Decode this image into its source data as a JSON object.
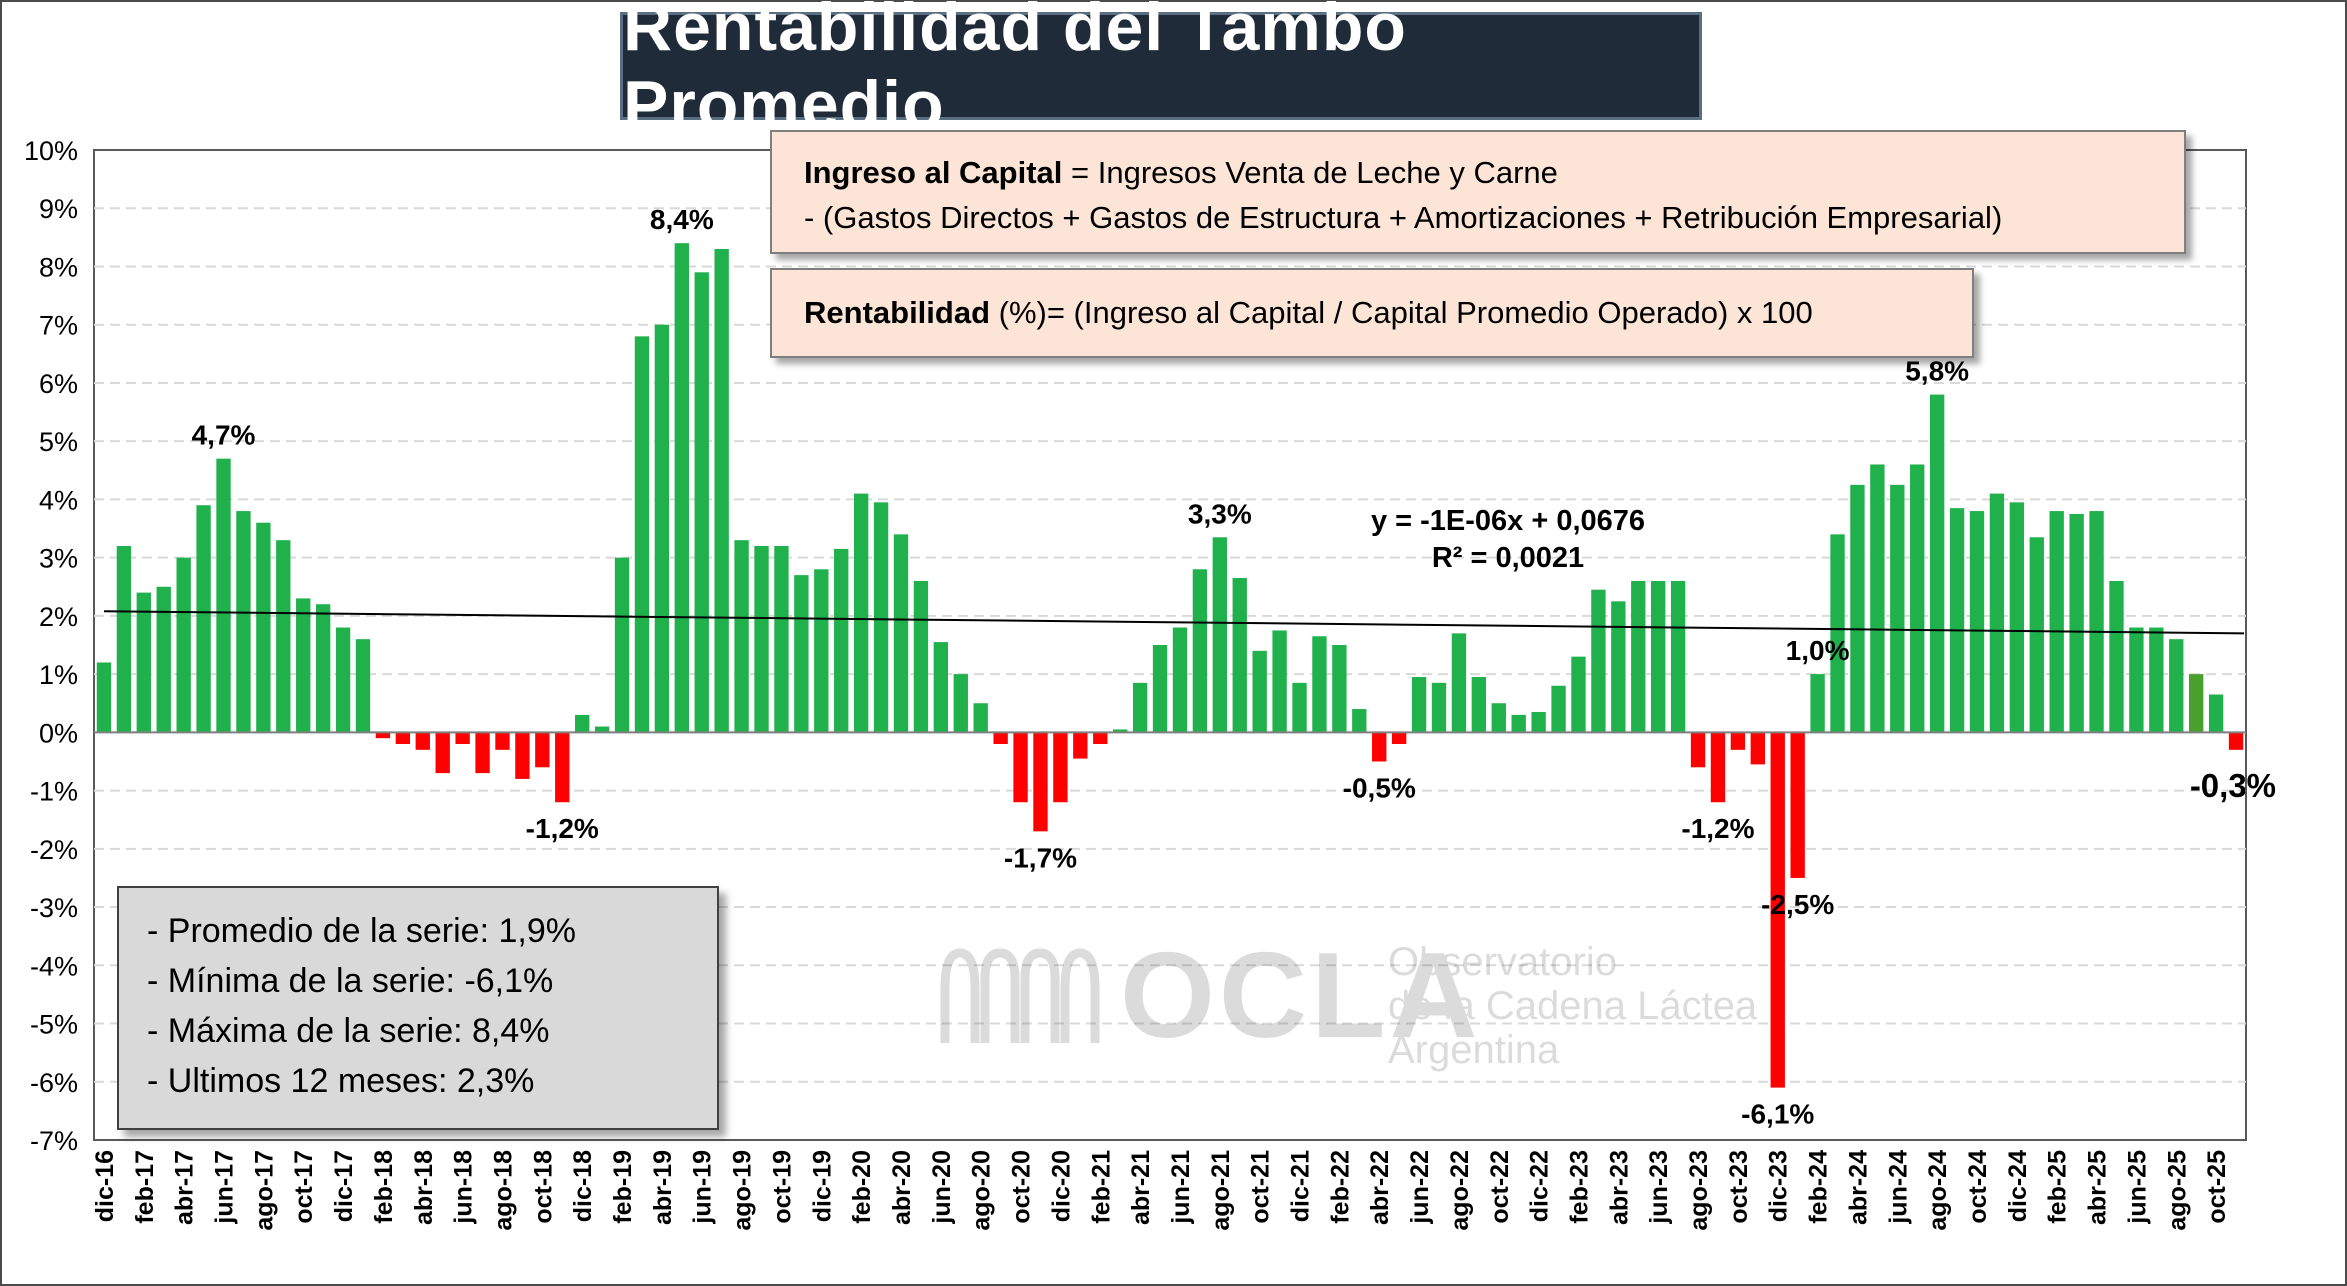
{
  "title": "Rentabilidad del Tambo Promedio",
  "formula": {
    "line1_label": "Ingreso al Capital",
    "line1_text": " = Ingresos Venta de Leche y Carne",
    "line2_text": "-  (Gastos Directos + Gastos de Estructura  + Amortizaciones +  Retribución Empresarial)",
    "line3_label": "Rentabilidad",
    "line3_text": " (%)= (Ingreso al Capital / Capital Promedio Operado) x 100"
  },
  "stats": {
    "promedio": "- Promedio de la serie: 1,9%",
    "minima": "- Mínima de la serie: -6,1%",
    "maxima": "- Máxima de la serie: 8,4%",
    "ultimos": "- Ultimos 12 meses: 2,3%"
  },
  "logo": {
    "word": "OCLA",
    "line1": "Observatorio",
    "line2": "de la Cadena Láctea",
    "line3": "Argentina"
  },
  "colors": {
    "positive": "#21b14c",
    "negative": "#ff0000",
    "highlight": "#4aa02c",
    "grid": "#d9d9d9",
    "trend": "#000000"
  },
  "chart_data": {
    "type": "bar",
    "title": "Rentabilidad del Tambo Promedio",
    "ylim": [
      -7,
      10
    ],
    "ytick_step": 1,
    "ytick_labels": [
      "10%",
      "9%",
      "8%",
      "7%",
      "6%",
      "5%",
      "4%",
      "3%",
      "2%",
      "1%",
      "0%",
      "-1%",
      "-2%",
      "-3%",
      "-4%",
      "-5%",
      "-6%",
      "-7%"
    ],
    "grid": true,
    "categories": [
      "dic-16",
      "ene-17",
      "feb-17",
      "mar-17",
      "abr-17",
      "may-17",
      "jun-17",
      "jul-17",
      "ago-17",
      "sep-17",
      "oct-17",
      "nov-17",
      "dic-17",
      "ene-18",
      "feb-18",
      "mar-18",
      "abr-18",
      "may-18",
      "jun-18",
      "jul-18",
      "ago-18",
      "sep-18",
      "oct-18",
      "nov-18",
      "dic-18",
      "ene-19",
      "feb-19",
      "mar-19",
      "abr-19",
      "may-19",
      "jun-19",
      "jul-19",
      "ago-19",
      "sep-19",
      "oct-19",
      "nov-19",
      "dic-19",
      "ene-20",
      "feb-20",
      "mar-20",
      "abr-20",
      "may-20",
      "jun-20",
      "jul-20",
      "ago-20",
      "sep-20",
      "oct-20",
      "nov-20",
      "dic-20",
      "ene-21",
      "feb-21",
      "mar-21",
      "abr-21",
      "may-21",
      "jun-21",
      "jul-21",
      "ago-21",
      "sep-21",
      "oct-21",
      "nov-21",
      "dic-21",
      "ene-22",
      "feb-22",
      "mar-22",
      "abr-22",
      "may-22",
      "jun-22",
      "jul-22",
      "ago-22",
      "sep-22",
      "oct-22",
      "nov-22",
      "dic-22",
      "ene-23",
      "feb-23",
      "mar-23",
      "abr-23",
      "may-23",
      "jun-23",
      "jul-23",
      "ago-23",
      "sep-23",
      "oct-23",
      "nov-23",
      "dic-23",
      "ene-24",
      "feb-24",
      "mar-24",
      "abr-24",
      "may-24",
      "jun-24",
      "jul-24",
      "ago-24",
      "sep-24",
      "oct-24",
      "nov-24",
      "dic-24",
      "ene-25",
      "feb-25",
      "mar-25",
      "abr-25",
      "may-25",
      "jun-25",
      "jul-25",
      "ago-25",
      "sep-25",
      "oct-25",
      "nov-25"
    ],
    "visible_tick_labels": [
      "dic-16",
      "feb-17",
      "abr-17",
      "jun-17",
      "ago-17",
      "oct-17",
      "dic-17",
      "feb-18",
      "abr-18",
      "jun-18",
      "ago-18",
      "oct-18",
      "dic-18",
      "feb-19",
      "abr-19",
      "jun-19",
      "ago-19",
      "oct-19",
      "dic-19",
      "feb-20",
      "abr-20",
      "jun-20",
      "ago-20",
      "oct-20",
      "dic-20",
      "feb-21",
      "abr-21",
      "jun-21",
      "ago-21",
      "oct-21",
      "dic-21",
      "feb-22",
      "abr-22",
      "jun-22",
      "ago-22",
      "oct-22",
      "dic-22",
      "feb-23",
      "abr-23",
      "jun-23",
      "ago-23",
      "oct-23",
      "dic-23",
      "feb-24",
      "abr-24",
      "jun-24",
      "ago-24",
      "oct-24",
      "dic-24",
      "feb-25",
      "abr-25",
      "jun-25",
      "ago-25",
      "oct-25"
    ],
    "values": [
      1.2,
      3.2,
      2.4,
      2.5,
      3.0,
      3.9,
      4.7,
      3.8,
      3.6,
      3.3,
      2.3,
      2.2,
      1.8,
      1.6,
      -0.1,
      -0.2,
      -0.3,
      -0.7,
      -0.2,
      -0.7,
      -0.3,
      -0.8,
      -0.6,
      -1.2,
      0.3,
      0.1,
      3.0,
      6.8,
      7.0,
      8.4,
      7.9,
      8.3,
      3.3,
      3.2,
      3.2,
      2.7,
      2.8,
      3.15,
      4.1,
      3.95,
      3.4,
      2.6,
      1.55,
      1.0,
      0.5,
      -0.2,
      -1.2,
      -1.7,
      -1.2,
      -0.45,
      -0.2,
      0.05,
      0.85,
      1.5,
      1.8,
      2.8,
      3.35,
      2.65,
      1.4,
      1.75,
      0.85,
      1.65,
      1.5,
      0.4,
      -0.5,
      -0.2,
      0.95,
      0.85,
      1.7,
      0.95,
      0.5,
      0.3,
      0.35,
      0.8,
      1.3,
      2.45,
      2.25,
      2.6,
      2.6,
      2.6,
      -0.6,
      -1.2,
      -0.3,
      -0.55,
      -6.1,
      -2.5,
      1.0,
      3.4,
      4.25,
      4.6,
      4.25,
      4.6,
      5.8,
      3.85,
      3.8,
      4.1,
      3.95,
      3.35,
      3.8,
      3.75,
      3.8,
      2.6,
      1.8,
      1.8,
      1.6,
      1.0,
      0.65,
      -0.3
    ],
    "highlight_index": 105,
    "data_labels": [
      {
        "index": 6,
        "text": "4,7%"
      },
      {
        "index": 23,
        "text": "-1,2%"
      },
      {
        "index": 29,
        "text": "8,4%"
      },
      {
        "index": 47,
        "text": "-1,7%"
      },
      {
        "index": 56,
        "text": "3,3%"
      },
      {
        "index": 64,
        "text": "-0,5%"
      },
      {
        "index": 81,
        "text": "-1,2%"
      },
      {
        "index": 84,
        "text": "-6,1%"
      },
      {
        "index": 85,
        "text": "-2,5%"
      },
      {
        "index": 86,
        "text": "1,0%"
      },
      {
        "index": 92,
        "text": "5,8%"
      },
      {
        "index": 107,
        "text": "-0,3%"
      }
    ],
    "trendline": {
      "equation": "y = -1E-06x + 0,0676",
      "r2": "R² = 0,0021",
      "start": 2.08,
      "end": 1.7
    }
  }
}
